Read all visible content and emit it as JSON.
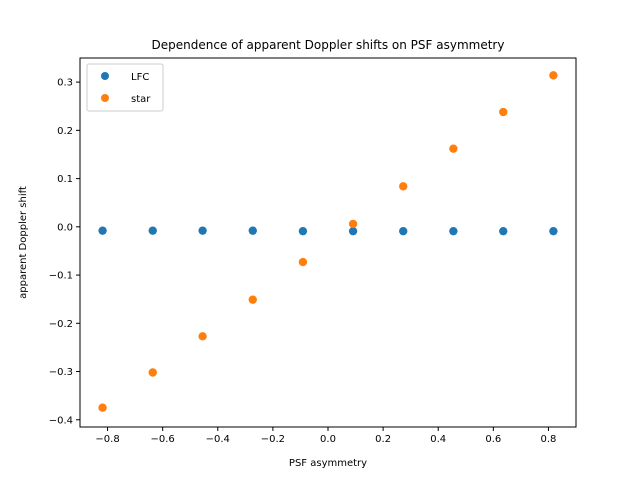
{
  "chart_data": {
    "type": "scatter",
    "title": "Dependence of apparent Doppler shifts on PSF asymmetry",
    "xlabel": "PSF asymmetry",
    "ylabel": "apparent Doppler shift",
    "xlim": [
      -0.9,
      0.9
    ],
    "ylim": [
      -0.415,
      0.35
    ],
    "xticks": [
      -0.8,
      -0.6,
      -0.4,
      -0.2,
      0.0,
      0.2,
      0.4,
      0.6,
      0.8
    ],
    "xtick_labels": [
      "−0.8",
      "−0.6",
      "−0.4",
      "−0.2",
      "0.0",
      "0.2",
      "0.4",
      "0.6",
      "0.8"
    ],
    "yticks": [
      -0.4,
      -0.3,
      -0.2,
      -0.1,
      0.0,
      0.1,
      0.2,
      0.3
    ],
    "ytick_labels": [
      "−0.4",
      "−0.3",
      "−0.2",
      "−0.1",
      "0.0",
      "0.1",
      "0.2",
      "0.3"
    ],
    "grid": false,
    "legend_position": "top-left",
    "series": [
      {
        "name": "LFC",
        "color": "#1f77b4",
        "x": [
          -0.818,
          -0.636,
          -0.455,
          -0.273,
          -0.091,
          0.091,
          0.273,
          0.455,
          0.636,
          0.818
        ],
        "y": [
          -0.008,
          -0.008,
          -0.008,
          -0.008,
          -0.009,
          -0.009,
          -0.009,
          -0.009,
          -0.009,
          -0.009
        ]
      },
      {
        "name": "star",
        "color": "#ff7f0e",
        "x": [
          -0.818,
          -0.636,
          -0.455,
          -0.273,
          -0.091,
          0.091,
          0.273,
          0.455,
          0.636,
          0.818
        ],
        "y": [
          -0.375,
          -0.302,
          -0.227,
          -0.151,
          -0.073,
          0.006,
          0.084,
          0.162,
          0.238,
          0.314
        ]
      }
    ]
  }
}
